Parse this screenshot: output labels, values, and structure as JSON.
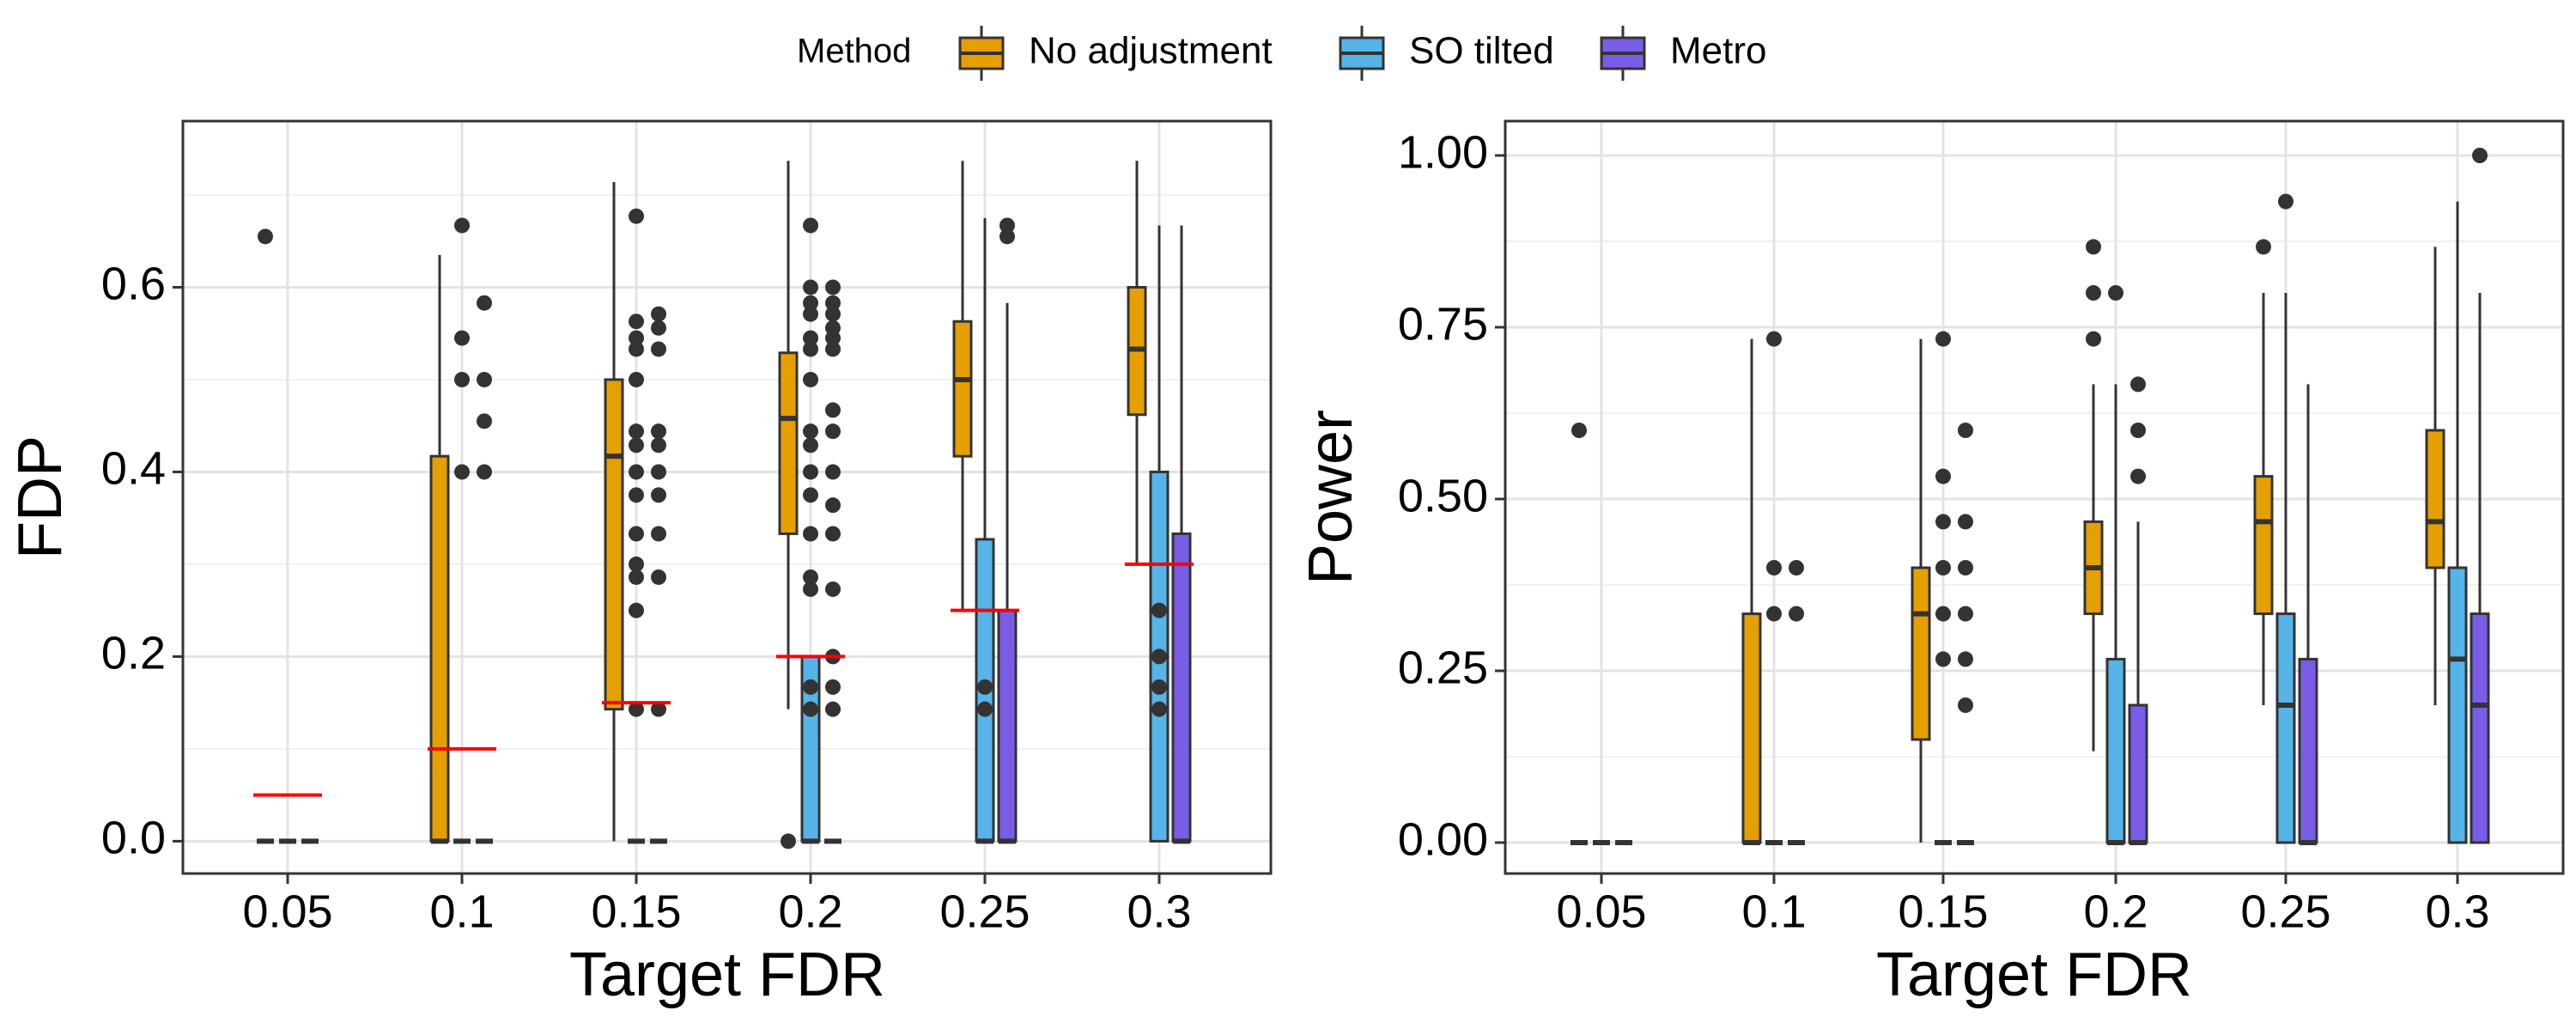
{
  "legend": {
    "title": "Method",
    "items": [
      {
        "label": "No adjustment",
        "color": "#E69F00"
      },
      {
        "label": "SO tilted",
        "color": "#56B4E9"
      },
      {
        "label": "Metro",
        "color": "#7B5CE6"
      }
    ]
  },
  "chart_data": [
    {
      "type": "box",
      "xlabel": "Target FDR",
      "ylabel": "FDP",
      "categories": [
        "0.05",
        "0.1",
        "0.15",
        "0.2",
        "0.25",
        "0.3"
      ],
      "ylim": [
        -0.035,
        0.78
      ],
      "yticks": [
        0.0,
        0.2,
        0.4,
        0.6
      ],
      "ytick_labels": [
        "0.0",
        "0.2",
        "0.4",
        "0.6"
      ],
      "reference_lines": [
        0.05,
        0.1,
        0.15,
        0.2,
        0.25,
        0.3
      ],
      "reference_color": "#FF0000",
      "series": [
        {
          "name": "No adjustment",
          "boxes": [
            {
              "min": 0,
              "q1": 0,
              "median": 0,
              "q3": 0,
              "max": 0,
              "outliers": [
                0.655
              ]
            },
            {
              "min": 0,
              "q1": 0,
              "median": 0,
              "q3": 0.417,
              "max": 0.635,
              "outliers": []
            },
            {
              "min": 0,
              "q1": 0.143,
              "median": 0.417,
              "q3": 0.5,
              "max": 0.714,
              "outliers": []
            },
            {
              "min": 0.143,
              "q1": 0.333,
              "median": 0.458,
              "q3": 0.529,
              "max": 0.737,
              "outliers": [
                0
              ]
            },
            {
              "min": 0.25,
              "q1": 0.417,
              "median": 0.5,
              "q3": 0.563,
              "max": 0.737,
              "outliers": []
            },
            {
              "min": 0.3,
              "q1": 0.462,
              "median": 0.533,
              "q3": 0.6,
              "max": 0.737,
              "outliers": []
            }
          ]
        },
        {
          "name": "SO tilted",
          "boxes": [
            {
              "min": 0,
              "q1": 0,
              "median": 0,
              "q3": 0,
              "max": 0,
              "outliers": []
            },
            {
              "min": 0,
              "q1": 0,
              "median": 0,
              "q3": 0,
              "max": 0,
              "outliers": [
                0.667,
                0.545,
                0.5,
                0.4
              ]
            },
            {
              "min": 0,
              "q1": 0,
              "median": 0,
              "q3": 0,
              "max": 0,
              "outliers": [
                0.677,
                0.563,
                0.545,
                0.533,
                0.5,
                0.444,
                0.429,
                0.4,
                0.375,
                0.333,
                0.3,
                0.286,
                0.25,
                0.143
              ]
            },
            {
              "min": 0,
              "q1": 0,
              "median": 0,
              "q3": 0.2,
              "max": 0.2,
              "outliers": [
                0.667,
                0.6,
                0.583,
                0.571,
                0.545,
                0.533,
                0.5,
                0.444,
                0.429,
                0.4,
                0.375,
                0.333,
                0.286,
                0.273,
                0.167,
                0.143
              ]
            },
            {
              "min": 0,
              "q1": 0,
              "median": 0,
              "q3": 0.327,
              "max": 0.675,
              "outliers": [
                0.167,
                0.143
              ]
            },
            {
              "min": 0,
              "q1": 0,
              "median": 0.2,
              "q3": 0.4,
              "max": 0.667,
              "outliers": [
                0.25,
                0.2,
                0.167,
                0.143
              ]
            }
          ]
        },
        {
          "name": "Metro",
          "boxes": [
            {
              "min": 0,
              "q1": 0,
              "median": 0,
              "q3": 0,
              "max": 0,
              "outliers": []
            },
            {
              "min": 0,
              "q1": 0,
              "median": 0,
              "q3": 0,
              "max": 0,
              "outliers": [
                0.583,
                0.5,
                0.455,
                0.4
              ]
            },
            {
              "min": 0,
              "q1": 0,
              "median": 0,
              "q3": 0,
              "max": 0,
              "outliers": [
                0.571,
                0.556,
                0.533,
                0.444,
                0.429,
                0.4,
                0.375,
                0.333,
                0.286,
                0.143
              ]
            },
            {
              "min": 0,
              "q1": 0,
              "median": 0,
              "q3": 0,
              "max": 0,
              "outliers": [
                0.6,
                0.583,
                0.571,
                0.556,
                0.545,
                0.533,
                0.467,
                0.444,
                0.4,
                0.364,
                0.333,
                0.273,
                0.2,
                0.167,
                0.143
              ]
            },
            {
              "min": 0,
              "q1": 0,
              "median": 0,
              "q3": 0.25,
              "max": 0.583,
              "outliers": [
                0.667,
                0.655
              ]
            },
            {
              "min": 0,
              "q1": 0,
              "median": 0,
              "q3": 0.333,
              "max": 0.667,
              "outliers": []
            }
          ]
        }
      ]
    },
    {
      "type": "box",
      "xlabel": "Target FDR",
      "ylabel": "Power",
      "categories": [
        "0.05",
        "0.1",
        "0.15",
        "0.2",
        "0.25",
        "0.3"
      ],
      "ylim": [
        -0.045,
        1.05
      ],
      "yticks": [
        0.0,
        0.25,
        0.5,
        0.75,
        1.0
      ],
      "ytick_labels": [
        "0.00",
        "0.25",
        "0.50",
        "0.75",
        "1.00"
      ],
      "series": [
        {
          "name": "No adjustment",
          "boxes": [
            {
              "min": 0,
              "q1": 0,
              "median": 0,
              "q3": 0,
              "max": 0,
              "outliers": [
                0.6
              ]
            },
            {
              "min": 0,
              "q1": 0,
              "median": 0,
              "q3": 0.333,
              "max": 0.733,
              "outliers": []
            },
            {
              "min": 0,
              "q1": 0.15,
              "median": 0.333,
              "q3": 0.4,
              "max": 0.733,
              "outliers": []
            },
            {
              "min": 0.133,
              "q1": 0.333,
              "median": 0.4,
              "q3": 0.467,
              "max": 0.667,
              "outliers": [
                0.867,
                0.8,
                0.733
              ]
            },
            {
              "min": 0.2,
              "q1": 0.333,
              "median": 0.467,
              "q3": 0.533,
              "max": 0.8,
              "outliers": [
                0.867
              ]
            },
            {
              "min": 0.2,
              "q1": 0.4,
              "median": 0.467,
              "q3": 0.6,
              "max": 0.867,
              "outliers": []
            }
          ]
        },
        {
          "name": "SO tilted",
          "boxes": [
            {
              "min": 0,
              "q1": 0,
              "median": 0,
              "q3": 0,
              "max": 0,
              "outliers": []
            },
            {
              "min": 0,
              "q1": 0,
              "median": 0,
              "q3": 0,
              "max": 0,
              "outliers": [
                0.733,
                0.4,
                0.333
              ]
            },
            {
              "min": 0,
              "q1": 0,
              "median": 0,
              "q3": 0,
              "max": 0,
              "outliers": [
                0.733,
                0.533,
                0.467,
                0.4,
                0.333,
                0.267
              ]
            },
            {
              "min": 0,
              "q1": 0,
              "median": 0,
              "q3": 0.267,
              "max": 0.667,
              "outliers": [
                0.8
              ]
            },
            {
              "min": 0,
              "q1": 0,
              "median": 0.2,
              "q3": 0.333,
              "max": 0.8,
              "outliers": [
                0.933
              ]
            },
            {
              "min": 0,
              "q1": 0,
              "median": 0.267,
              "q3": 0.4,
              "max": 0.933,
              "outliers": []
            }
          ]
        },
        {
          "name": "Metro",
          "boxes": [
            {
              "min": 0,
              "q1": 0,
              "median": 0,
              "q3": 0,
              "max": 0,
              "outliers": []
            },
            {
              "min": 0,
              "q1": 0,
              "median": 0,
              "q3": 0,
              "max": 0,
              "outliers": [
                0.4,
                0.333
              ]
            },
            {
              "min": 0,
              "q1": 0,
              "median": 0,
              "q3": 0,
              "max": 0,
              "outliers": [
                0.6,
                0.467,
                0.4,
                0.333,
                0.267,
                0.2
              ]
            },
            {
              "min": 0,
              "q1": 0,
              "median": 0,
              "q3": 0.2,
              "max": 0.467,
              "outliers": [
                0.667,
                0.6,
                0.533
              ]
            },
            {
              "min": 0,
              "q1": 0,
              "median": 0,
              "q3": 0.267,
              "max": 0.667,
              "outliers": []
            },
            {
              "min": 0,
              "q1": 0,
              "median": 0.2,
              "q3": 0.333,
              "max": 0.8,
              "outliers": [
                1.0
              ]
            }
          ]
        }
      ]
    }
  ]
}
